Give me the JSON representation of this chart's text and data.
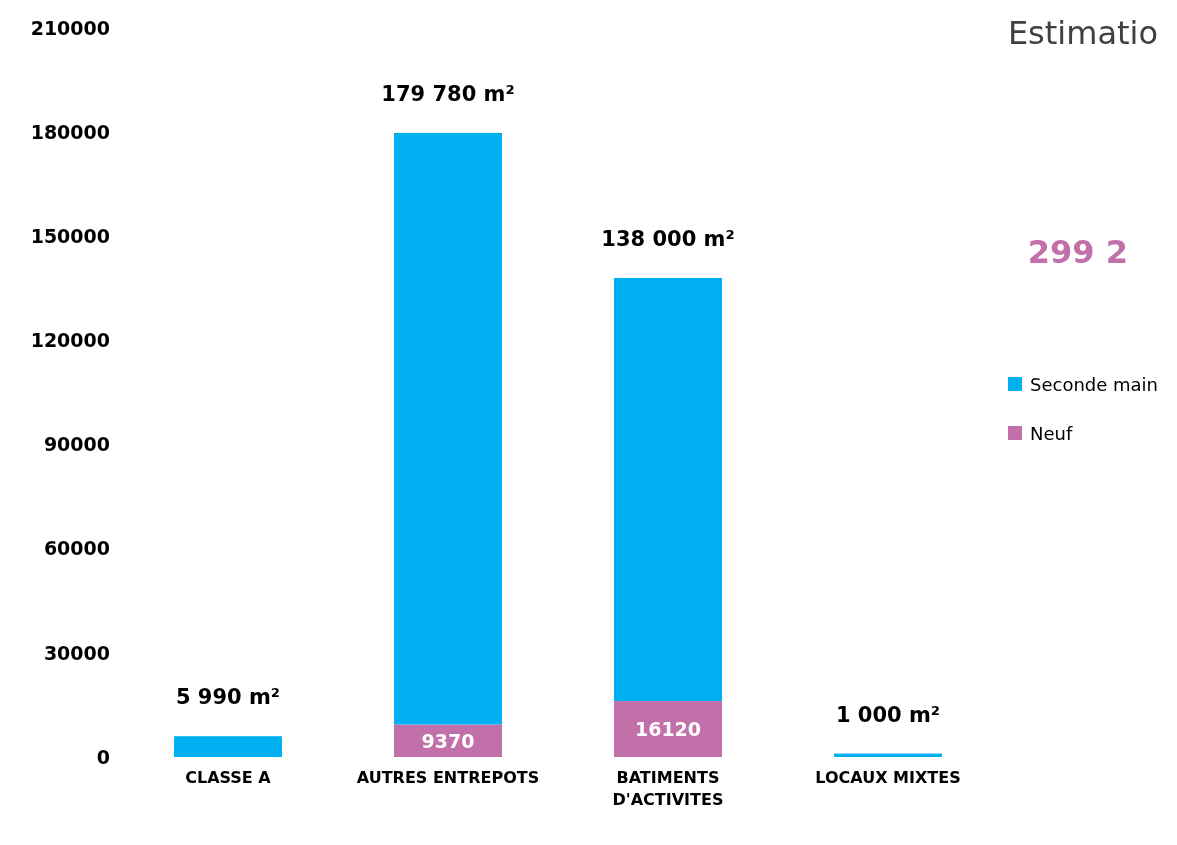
{
  "chart_data": {
    "type": "bar",
    "title": "Estimatio",
    "annotations": [
      "299 2"
    ],
    "stacked": true,
    "categories": [
      "CLASSE A",
      "AUTRES ENTREPOTS",
      "BATIMENTS D'ACTIVITES",
      "LOCAUX MIXTES"
    ],
    "series": [
      {
        "name": "Neuf",
        "color": "#c270aa",
        "values": [
          null,
          9370,
          16120,
          null
        ],
        "value_labels": [
          null,
          "9370",
          "16120",
          null
        ]
      },
      {
        "name": "Seconde main",
        "color": "#00b0f0",
        "values": [
          5990,
          170410,
          121880,
          1000
        ]
      }
    ],
    "totals": [
      "5 990 m²",
      "179 780 m²",
      "138 000 m²",
      "1 000 m²"
    ],
    "ylim": [
      0,
      210000
    ],
    "yticks": [
      0,
      30000,
      60000,
      90000,
      120000,
      150000,
      180000,
      210000
    ],
    "grid": false,
    "legend": "right"
  }
}
